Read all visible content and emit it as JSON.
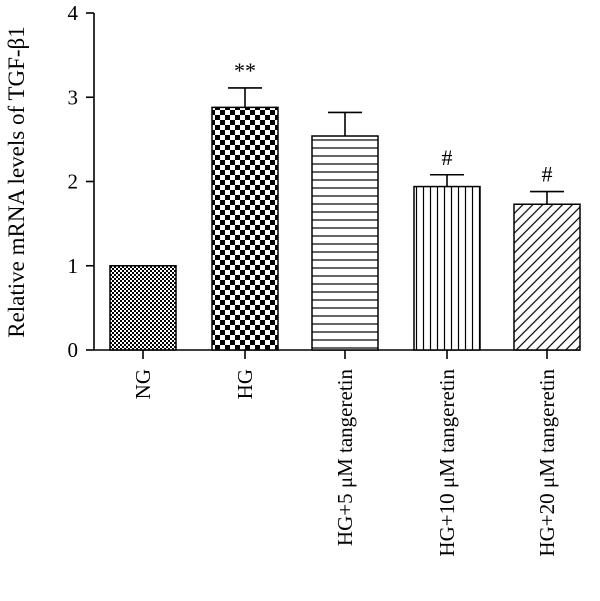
{
  "chart_data": {
    "type": "bar",
    "title": "",
    "xlabel": "",
    "ylabel": "Relative mRNA levels of TGF-β1",
    "ylim": [
      0,
      4
    ],
    "yticks": [
      "0",
      "1",
      "2",
      "3",
      "4"
    ],
    "grid": false,
    "categories": [
      "NG",
      "HG",
      "HG+5 μM tangeretin",
      "HG+10 μM tangeretin",
      "HG+20 μM tangeretin"
    ],
    "values": [
      1.0,
      2.88,
      2.54,
      1.94,
      1.73
    ],
    "errors": [
      0,
      0.23,
      0.28,
      0.14,
      0.15
    ],
    "significance": [
      "",
      "**",
      "",
      "#",
      "#"
    ],
    "patterns": [
      "fine-checker",
      "coarse-checker",
      "horizontal-lines",
      "vertical-lines",
      "diagonal-lines"
    ]
  }
}
